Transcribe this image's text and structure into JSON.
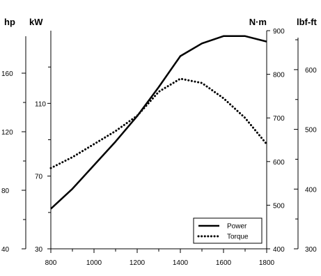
{
  "chart_data": {
    "type": "line",
    "x": [
      800,
      900,
      1000,
      1100,
      1200,
      1300,
      1400,
      1500,
      1600,
      1700,
      1800
    ],
    "xlim": [
      800,
      1800
    ],
    "x_ticks": [
      800,
      1000,
      1200,
      1400,
      1600,
      1800
    ],
    "axes": {
      "hp": {
        "unit": "hp",
        "ticks": [
          40,
          80,
          120,
          160
        ]
      },
      "kW": {
        "unit": "kW",
        "ticks": [
          30,
          70,
          110
        ],
        "ylim": [
          30,
          150
        ]
      },
      "Nm": {
        "unit": "N·m",
        "ticks": [
          400,
          500,
          600,
          700,
          800,
          900
        ],
        "ylim": [
          400,
          900
        ]
      },
      "lbf": {
        "unit": "lbf-ft",
        "ticks": [
          300,
          400,
          500,
          600
        ]
      }
    },
    "series": [
      {
        "name": "Power",
        "axis": "kW",
        "style": "solid",
        "values": [
          52,
          63,
          76,
          89,
          103,
          119,
          136,
          143,
          147,
          147,
          144
        ]
      },
      {
        "name": "Torque",
        "axis": "Nm",
        "style": "dotted",
        "values": [
          585,
          610,
          640,
          670,
          705,
          760,
          790,
          780,
          745,
          700,
          640
        ]
      }
    ],
    "legend_position": "bottom-right",
    "grid": false
  }
}
